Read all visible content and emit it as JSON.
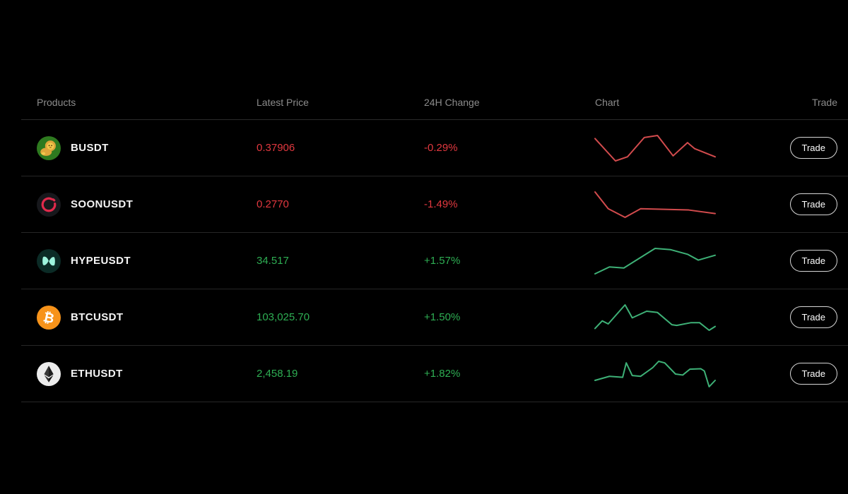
{
  "table": {
    "headers": {
      "products": "Products",
      "latest_price": "Latest Price",
      "change_24h": "24H Change",
      "chart": "Chart",
      "trade": "Trade"
    },
    "trade_button_label": "Trade",
    "rows": [
      {
        "symbol": "BUSDT",
        "icon": "b-lion-coin",
        "price": "0.37906",
        "change": "-0.29%",
        "direction": "down",
        "sparkline": [
          [
            0,
            12
          ],
          [
            17,
            100
          ],
          [
            27,
            84
          ],
          [
            41,
            8
          ],
          [
            52,
            0
          ],
          [
            65,
            80
          ],
          [
            77,
            28
          ],
          [
            83,
            52
          ],
          [
            100,
            84
          ]
        ]
      },
      {
        "symbol": "SOONUSDT",
        "icon": "soon-coin",
        "price": "0.2770",
        "change": "-1.49%",
        "direction": "down",
        "sparkline": [
          [
            0,
            0
          ],
          [
            11,
            66
          ],
          [
            25,
            100
          ],
          [
            38,
            66
          ],
          [
            78,
            71
          ],
          [
            100,
            85
          ]
        ]
      },
      {
        "symbol": "HYPEUSDT",
        "icon": "hyperliquid-coin",
        "price": "34.517",
        "change": "+1.57%",
        "direction": "up",
        "sparkline": [
          [
            0,
            100
          ],
          [
            12,
            73
          ],
          [
            24,
            77
          ],
          [
            50,
            0
          ],
          [
            63,
            5
          ],
          [
            77,
            23
          ],
          [
            86,
            46
          ],
          [
            100,
            27
          ]
        ]
      },
      {
        "symbol": "BTCUSDT",
        "icon": "bitcoin-coin",
        "price": "103,025.70",
        "change": "+1.50%",
        "direction": "up",
        "sparkline": [
          [
            0,
            93
          ],
          [
            6,
            63
          ],
          [
            11,
            75
          ],
          [
            25,
            0
          ],
          [
            31,
            51
          ],
          [
            43,
            25
          ],
          [
            52,
            30
          ],
          [
            64,
            78
          ],
          [
            68,
            81
          ],
          [
            80,
            70
          ],
          [
            87,
            70
          ],
          [
            95,
            100
          ],
          [
            100,
            85
          ]
        ]
      },
      {
        "symbol": "ETHUSDT",
        "icon": "ethereum-coin",
        "price": "2,458.19",
        "change": "+1.82%",
        "direction": "up",
        "sparkline": [
          [
            0,
            75
          ],
          [
            12,
            59
          ],
          [
            23,
            63
          ],
          [
            26,
            6
          ],
          [
            31,
            56
          ],
          [
            38,
            59
          ],
          [
            48,
            25
          ],
          [
            53,
            0
          ],
          [
            58,
            6
          ],
          [
            67,
            50
          ],
          [
            73,
            54
          ],
          [
            79,
            31
          ],
          [
            88,
            29
          ],
          [
            91,
            38
          ],
          [
            95,
            100
          ],
          [
            100,
            75
          ]
        ]
      }
    ]
  },
  "colors": {
    "up_text": "#2eae53",
    "down_text": "#e2383f",
    "up_line": "#3eb177",
    "down_line": "#d24b4d",
    "background": "#000000"
  }
}
